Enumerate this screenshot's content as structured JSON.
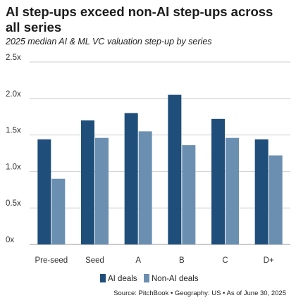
{
  "title": "AI step-ups exceed non-AI step-ups across all series",
  "subtitle": "2025 median AI & ML VC valuation step-up by series",
  "source": "Source: PitchBook • Geography: US • As of June 30, 2025",
  "colors": {
    "ai": "#1f4e7a",
    "non_ai": "#6b8fb0",
    "grid": "#d0d0d0"
  },
  "chart_data": {
    "type": "bar",
    "title": "AI step-ups exceed non-AI step-ups across all series",
    "subtitle": "2025 median AI & ML VC valuation step-up by series",
    "xlabel": "",
    "ylabel": "",
    "categories": [
      "Pre-seed",
      "Seed",
      "A",
      "B",
      "C",
      "D+"
    ],
    "series": [
      {
        "name": "AI deals",
        "values": [
          1.44,
          1.7,
          1.8,
          2.05,
          1.72,
          1.44
        ]
      },
      {
        "name": "Non-AI deals",
        "values": [
          0.9,
          1.46,
          1.55,
          1.36,
          1.46,
          1.22
        ]
      }
    ],
    "ylim": [
      0,
      2.5
    ],
    "yticks": [
      "0x",
      "0.5x",
      "1.0x",
      "1.5x",
      "2.0x",
      "2.5x"
    ],
    "ytick_values": [
      0,
      0.5,
      1.0,
      1.5,
      2.0,
      2.5
    ],
    "grid": true,
    "legend": "bottom-right"
  }
}
